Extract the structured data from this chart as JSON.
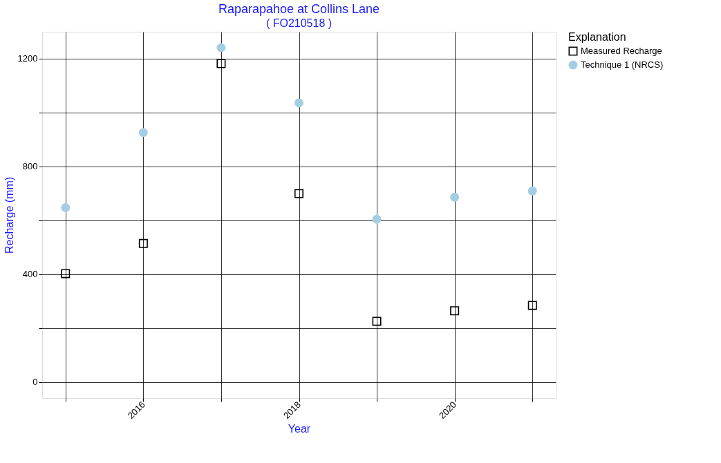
{
  "chart_data": {
    "type": "scatter",
    "title": "Raparapahoe at Collins Lane",
    "subtitle": "( FO210518 )",
    "xlabel": "Year",
    "ylabel": "Recharge (mm)",
    "legend_title": "Explanation",
    "x": [
      2015,
      2016,
      2017,
      2018,
      2019,
      2020,
      2021
    ],
    "series": [
      {
        "name": "Measured Recharge",
        "color": "#000000",
        "marker": "square",
        "values": [
          402,
          514,
          1182,
          699,
          225,
          264,
          284
        ]
      },
      {
        "name": "Technique 1 (NRCS)",
        "color": "#a6cee3",
        "marker": "circle",
        "values": [
          647,
          926,
          1241,
          1036,
          604,
          686,
          709
        ]
      }
    ],
    "xlim": [
      2014.7,
      2021.3
    ],
    "xticks": [
      {
        "value": 2015,
        "label": null
      },
      2016,
      {
        "value": 2017,
        "label": null
      },
      2018,
      {
        "value": 2019,
        "label": null
      },
      2020,
      {
        "value": 2021,
        "label": null
      }
    ],
    "ylim": [
      -60,
      1300
    ],
    "yticks": [
      0,
      {
        "value": 200,
        "label": null
      },
      400,
      {
        "value": 600,
        "label": null
      },
      800,
      {
        "value": 1000,
        "label": null
      },
      1200
    ],
    "grid": true,
    "legend": "right"
  }
}
